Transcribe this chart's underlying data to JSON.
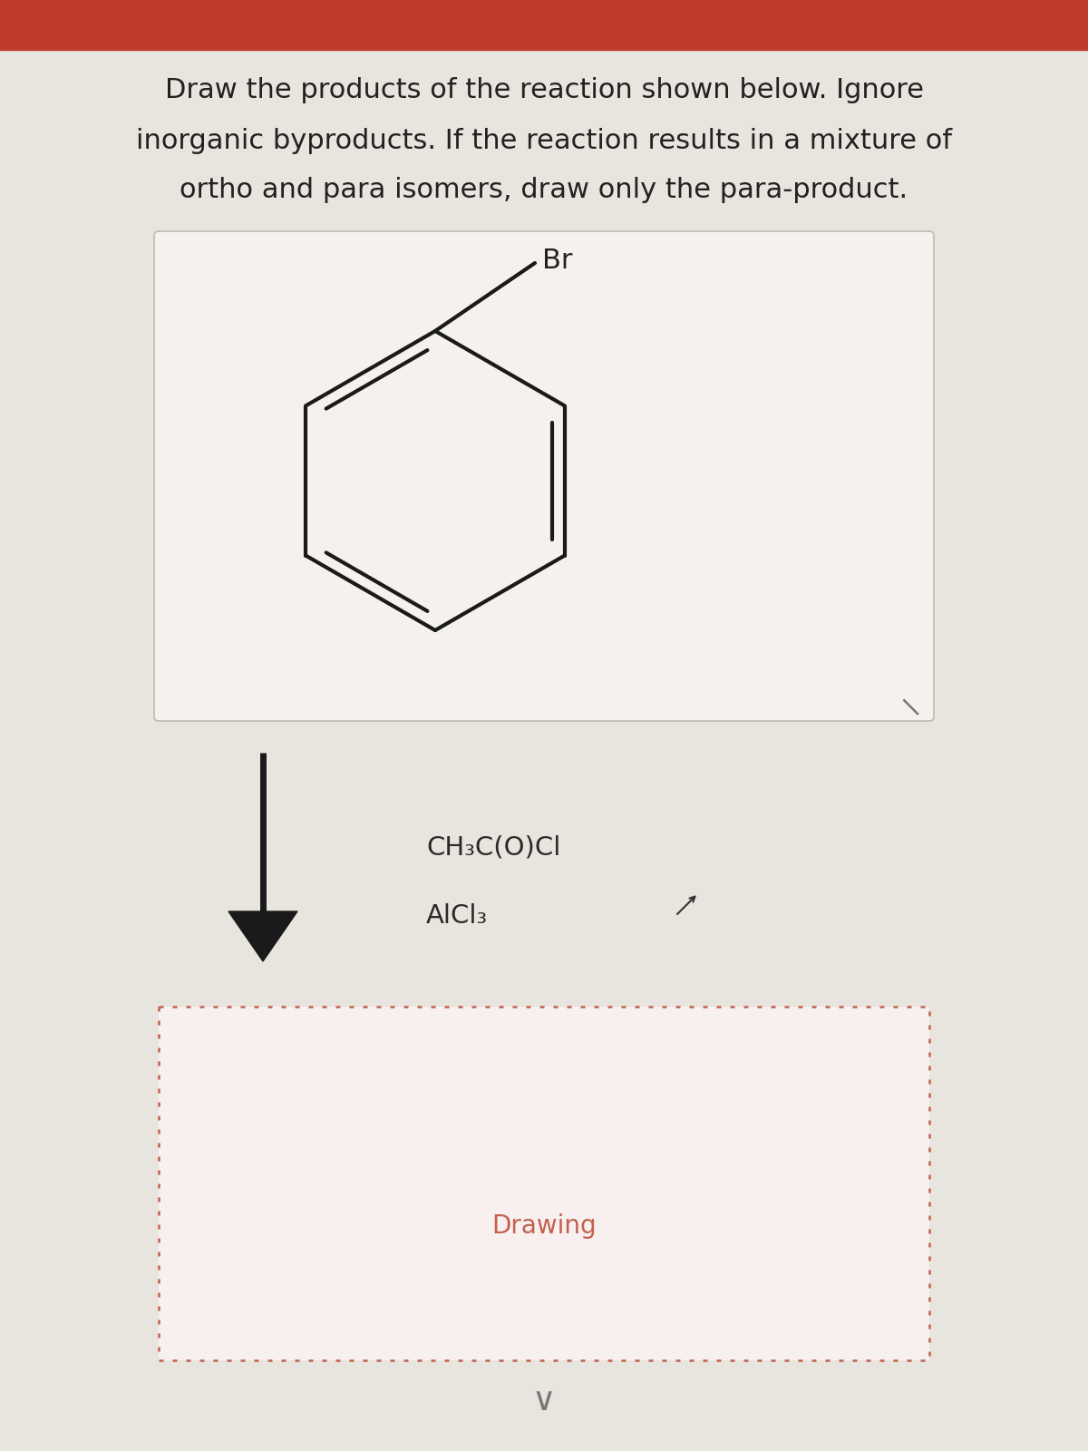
{
  "title_lines": [
    "Draw the products of the reaction shown below. Ignore",
    "inorganic byproducts. If the reaction results in a mixture of",
    "ortho and para isomers, draw only the para-product."
  ],
  "reagent_line1": "CH₃C(O)Cl",
  "reagent_line2": "AlCl₃",
  "drawing_label": "Drawing",
  "br_label": "Br",
  "bg_color": "#e8e4de",
  "box_bg": "#f5f2ee",
  "text_color": "#222222",
  "line_color": "#1a1a1a",
  "dashed_box_color": "#c46050",
  "arrow_color": "#1a1a1a",
  "top_bar_color": "#be3a2a",
  "drawing_text_color": "#c46050",
  "reagent_color": "#2a2a2a",
  "figsize": [
    12,
    16
  ],
  "dpi": 100
}
